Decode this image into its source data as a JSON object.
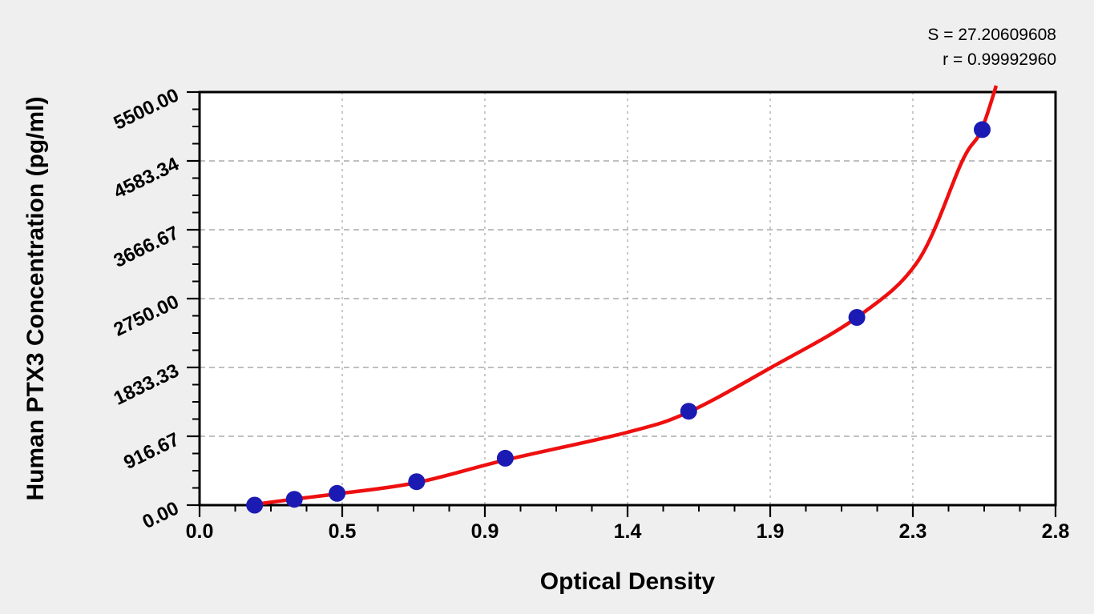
{
  "figure": {
    "background_color": "#efefef",
    "plot_background_color": "#ffffff",
    "frame_color": "#000000",
    "grid_color": "#9a9a9a",
    "annotation": {
      "s_line": "S = 27.20609608",
      "r_line": "r = 0.99992960"
    },
    "y_axis": {
      "title": "Human PTX3 Concentration (pg/ml)",
      "tick_labels": [
        "0.00",
        "916.67",
        "1833.33",
        "2750.00",
        "3666.67",
        "4583.34",
        "5500.00"
      ],
      "tick_values": [
        0,
        916.67,
        1833.33,
        2750.0,
        3666.67,
        4583.34,
        5500.0
      ],
      "min": 0,
      "max": 5500,
      "minor_ticks_per_major": 3
    },
    "x_axis": {
      "title": "Optical Density",
      "tick_labels": [
        "0.0",
        "0.5",
        "0.9",
        "1.4",
        "1.9",
        "2.3",
        "2.8"
      ],
      "tick_values": [
        0,
        0.4667,
        0.9333,
        1.4,
        1.8667,
        2.3333,
        2.8
      ],
      "min": 0,
      "max": 2.8,
      "minor_ticks_per_major": 3
    }
  },
  "chart_data": {
    "type": "scatter",
    "title": "",
    "xlabel": "Optical Density",
    "ylabel": "Human PTX3 Concentration (pg/ml)",
    "xlim": [
      0,
      2.8
    ],
    "ylim": [
      0,
      5500
    ],
    "x_tick_labels": [
      "0.0",
      "0.5",
      "0.9",
      "1.4",
      "1.9",
      "2.3",
      "2.8"
    ],
    "y_tick_labels": [
      "0.00",
      "916.67",
      "1833.33",
      "2750.00",
      "3666.67",
      "4583.34",
      "5500.00"
    ],
    "grid": "dashed gray gridlines at major ticks, white plot area, gray outer background",
    "legend": "none",
    "annotations": [
      "S = 27.20609608",
      "r = 0.99992960"
    ],
    "series": [
      {
        "name": "standard-points",
        "type": "scatter",
        "marker": "filled-circle",
        "color": "#1b1bb3",
        "points": [
          {
            "od": 0.18,
            "conc": 0
          },
          {
            "od": 0.31,
            "conc": 78.125
          },
          {
            "od": 0.45,
            "conc": 156.25
          },
          {
            "od": 0.71,
            "conc": 312.5
          },
          {
            "od": 1.0,
            "conc": 625
          },
          {
            "od": 1.6,
            "conc": 1250
          },
          {
            "od": 2.15,
            "conc": 2500
          },
          {
            "od": 2.56,
            "conc": 5000
          }
        ]
      },
      {
        "name": "fit-curve",
        "type": "line",
        "color": "#ee0f0f",
        "S": "27.20609608",
        "r": "0.99992960",
        "samples": [
          [
            0.163,
            0
          ],
          [
            0.31,
            80
          ],
          [
            0.45,
            150
          ],
          [
            0.71,
            300
          ],
          [
            1.0,
            600
          ],
          [
            1.4,
            970
          ],
          [
            1.6,
            1240
          ],
          [
            1.87,
            1833
          ],
          [
            2.15,
            2500
          ],
          [
            2.35,
            3250
          ],
          [
            2.495,
            4583
          ],
          [
            2.555,
            4970
          ],
          [
            2.606,
            5585
          ]
        ]
      }
    ]
  }
}
